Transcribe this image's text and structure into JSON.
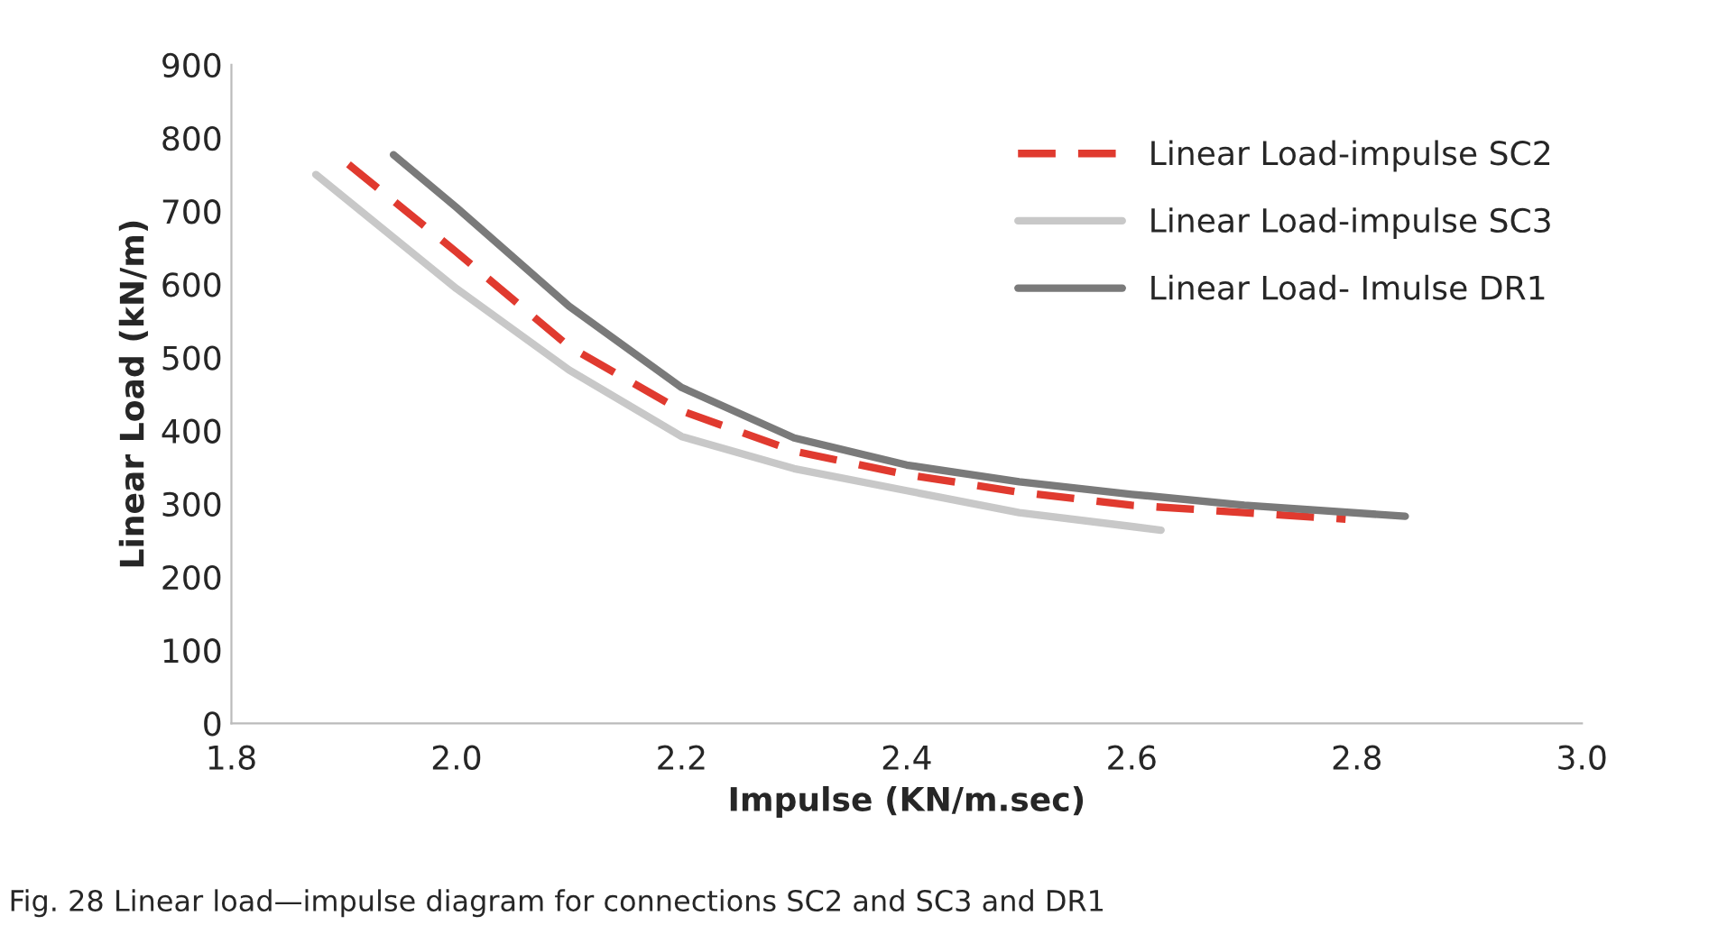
{
  "chart_data": {
    "type": "line",
    "xlabel": "Impulse (KN/m.sec)",
    "ylabel": "Linear Load (kN/m)",
    "xlim": [
      1.8,
      3.0
    ],
    "xticks": [
      {
        "value": 1.8,
        "label": "1.8"
      },
      {
        "value": 2.0,
        "label": "2.0"
      },
      {
        "value": 2.2,
        "label": "2.2"
      },
      {
        "value": 2.4,
        "label": "2.4"
      },
      {
        "value": 2.6,
        "label": "2.6"
      },
      {
        "value": 2.8,
        "label": "2.8"
      },
      {
        "value": 3.0,
        "label": "3.0"
      }
    ],
    "ylim": [
      0,
      900
    ],
    "yticks": [
      0,
      100,
      200,
      300,
      400,
      500,
      600,
      700,
      800,
      900
    ],
    "grid": false,
    "legend": "top right",
    "series": [
      {
        "name": "Linear Load-impulse SC2",
        "color": "#e03a2f",
        "line_style": "dashed",
        "x": [
          1.904,
          2.0,
          2.1,
          2.2,
          2.3,
          2.4,
          2.5,
          2.6,
          2.7,
          2.79
        ],
        "values": [
          764,
          644,
          515,
          427,
          372,
          340,
          316,
          298,
          288,
          279
        ]
      },
      {
        "name": "Linear Load-impulse SC3",
        "color": "#c8c8c8",
        "line_style": "solid",
        "x": [
          1.875,
          2.0,
          2.1,
          2.2,
          2.3,
          2.4,
          2.5,
          2.6,
          2.626
        ],
        "values": [
          750,
          594,
          483,
          392,
          348,
          318,
          288,
          269,
          264
        ]
      },
      {
        "name": "Linear Load- Imulse DR1",
        "color": "#7a7a7a",
        "line_style": "solid",
        "x": [
          1.944,
          2.0,
          2.1,
          2.2,
          2.3,
          2.4,
          2.5,
          2.6,
          2.7,
          2.843
        ],
        "values": [
          777,
          705,
          570,
          459,
          390,
          353,
          330,
          313,
          298,
          283
        ]
      }
    ],
    "annotations": [
      "Fig. 28 Linear load—impulse diagram for connections SC2 and SC3 and DR1"
    ]
  }
}
